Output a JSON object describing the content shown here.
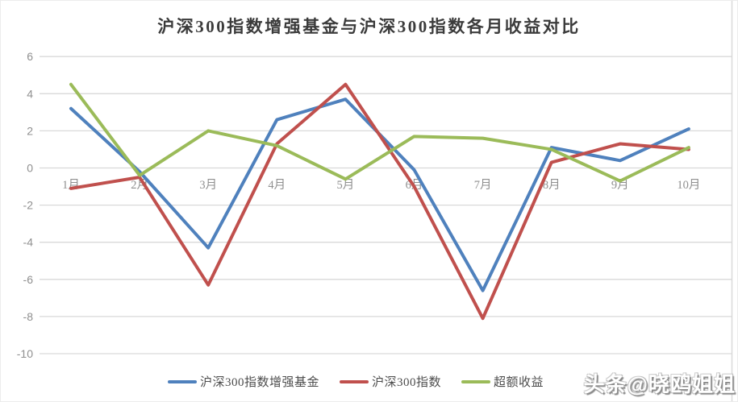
{
  "page": {
    "watermark": "头条@晓鸥姐姐"
  },
  "chart_data": {
    "type": "line",
    "title": "沪深300指数增强基金与沪深300指数各月收益对比",
    "categories": [
      "1月",
      "2月",
      "3月",
      "4月",
      "5月",
      "6月",
      "7月",
      "8月",
      "9月",
      "10月"
    ],
    "series": [
      {
        "name": "沪深300指数增强基金",
        "color": "#4F81BD",
        "values": [
          3.2,
          -0.2,
          -4.3,
          2.6,
          3.7,
          -0.1,
          -6.6,
          1.1,
          0.4,
          2.1
        ]
      },
      {
        "name": "沪深300指数",
        "color": "#C0504D",
        "values": [
          -1.1,
          -0.5,
          -6.3,
          1.3,
          4.5,
          -1.0,
          -8.1,
          0.3,
          1.3,
          1.0
        ]
      },
      {
        "name": "超额收益",
        "color": "#9BBB59",
        "values": [
          4.5,
          -0.4,
          2.0,
          1.2,
          -0.6,
          1.7,
          1.6,
          1.0,
          -0.7,
          1.1
        ]
      }
    ],
    "yticks": [
      6,
      4,
      2,
      0,
      -2,
      -4,
      -6,
      -8,
      -10
    ],
    "ylim": [
      -10,
      6
    ],
    "xlabel": "",
    "ylabel": "",
    "grid": true,
    "legend_position": "bottom",
    "gridline_color": "#d9d9d9",
    "axis_label_color": "#8f8f8f",
    "plot_border_color": "#d9d9d9"
  }
}
